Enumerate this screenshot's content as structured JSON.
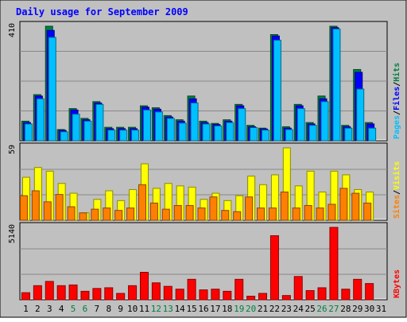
{
  "title": "Daily usage for September 2009",
  "colors": {
    "background": "#c0c0c0",
    "plot_background": "#c0c0c0",
    "grid": "#888888",
    "title": "#0000ff",
    "hits": "#008040",
    "files": "#0000ff",
    "pages": "#00c0ff",
    "visits": "#ffff00",
    "sites": "#ff8000",
    "kbytes": "#ff0000",
    "weekday_label": "#000000",
    "weekend_label": "#008040"
  },
  "chart_data": [
    {
      "type": "bar",
      "panel": "hits-files-pages",
      "y_max_label": "410",
      "ylim": [
        0,
        410
      ],
      "grid": true,
      "side_legend": [
        "Pages",
        "Files",
        "Hits"
      ],
      "categories": [
        "1",
        "2",
        "3",
        "4",
        "5",
        "6",
        "7",
        "8",
        "9",
        "10",
        "11",
        "12",
        "13",
        "14",
        "15",
        "16",
        "17",
        "18",
        "19",
        "20",
        "21",
        "22",
        "23",
        "24",
        "25",
        "26",
        "27",
        "28",
        "29",
        "30",
        "31"
      ],
      "series": [
        {
          "name": "Hits",
          "color_key": "hits",
          "values": [
            70,
            165,
            410,
            40,
            115,
            80,
            140,
            48,
            48,
            48,
            125,
            118,
            90,
            75,
            160,
            70,
            62,
            75,
            130,
            55,
            45,
            380,
            50,
            130,
            65,
            160,
            410,
            55,
            255,
            65,
            0
          ]
        },
        {
          "name": "Files",
          "color_key": "files",
          "values": [
            65,
            160,
            395,
            37,
            110,
            75,
            135,
            43,
            43,
            43,
            120,
            113,
            85,
            70,
            150,
            65,
            58,
            70,
            125,
            50,
            42,
            375,
            45,
            125,
            60,
            150,
            405,
            50,
            245,
            60,
            0
          ]
        },
        {
          "name": "Pages",
          "color_key": "pages",
          "values": [
            60,
            150,
            370,
            32,
            95,
            70,
            130,
            38,
            38,
            38,
            110,
            103,
            80,
            63,
            135,
            60,
            53,
            65,
            115,
            47,
            38,
            360,
            40,
            115,
            55,
            140,
            400,
            45,
            185,
            45,
            0
          ]
        }
      ]
    },
    {
      "type": "bar",
      "panel": "visits-sites",
      "y_max_label": "59",
      "ylim": [
        0,
        59
      ],
      "grid": true,
      "side_legend": [
        "Sites",
        "Visits"
      ],
      "categories": [
        "1",
        "2",
        "3",
        "4",
        "5",
        "6",
        "7",
        "8",
        "9",
        "10",
        "11",
        "12",
        "13",
        "14",
        "15",
        "16",
        "17",
        "18",
        "19",
        "20",
        "21",
        "22",
        "23",
        "24",
        "25",
        "26",
        "27",
        "28",
        "29",
        "30",
        "31"
      ],
      "series": [
        {
          "name": "Visits",
          "color_key": "visits",
          "values": [
            35,
            43,
            40,
            30,
            22,
            6,
            17,
            24,
            16,
            25,
            46,
            26,
            30,
            28,
            27,
            17,
            22,
            16,
            20,
            36,
            29,
            37,
            59,
            28,
            40,
            23,
            40,
            37,
            25,
            23,
            0
          ]
        },
        {
          "name": "Sites",
          "color_key": "sites",
          "values": [
            20,
            24,
            15,
            21,
            11,
            6,
            9,
            10,
            8,
            10,
            29,
            14,
            9,
            12,
            12,
            10,
            19,
            8,
            7,
            19,
            10,
            10,
            23,
            10,
            12,
            10,
            13,
            26,
            22,
            14,
            0
          ]
        }
      ]
    },
    {
      "type": "bar",
      "panel": "kbytes",
      "y_max_label": "5140",
      "ylim": [
        0,
        5140
      ],
      "grid": true,
      "side_legend": [
        "KBytes"
      ],
      "categories": [
        "1",
        "2",
        "3",
        "4",
        "5",
        "6",
        "7",
        "8",
        "9",
        "10",
        "11",
        "12",
        "13",
        "14",
        "15",
        "16",
        "17",
        "18",
        "19",
        "20",
        "21",
        "22",
        "23",
        "24",
        "25",
        "26",
        "27",
        "28",
        "29",
        "30",
        "31"
      ],
      "series": [
        {
          "name": "KBytes",
          "color_key": "kbytes",
          "values": [
            500,
            1000,
            1300,
            1000,
            1050,
            600,
            800,
            850,
            450,
            1000,
            1950,
            1200,
            950,
            750,
            1450,
            700,
            750,
            600,
            1450,
            250,
            450,
            4550,
            300,
            1650,
            650,
            850,
            5140,
            750,
            1450,
            1150,
            0
          ]
        }
      ]
    }
  ],
  "x_axis": {
    "labels": [
      "1",
      "2",
      "3",
      "4",
      "5",
      "6",
      "7",
      "8",
      "9",
      "10",
      "11",
      "12",
      "13",
      "14",
      "15",
      "16",
      "17",
      "18",
      "19",
      "20",
      "21",
      "22",
      "23",
      "24",
      "25",
      "26",
      "27",
      "28",
      "29",
      "30",
      "31"
    ],
    "weekend_days": [
      "5",
      "6",
      "12",
      "13",
      "19",
      "20",
      "26",
      "27"
    ]
  }
}
